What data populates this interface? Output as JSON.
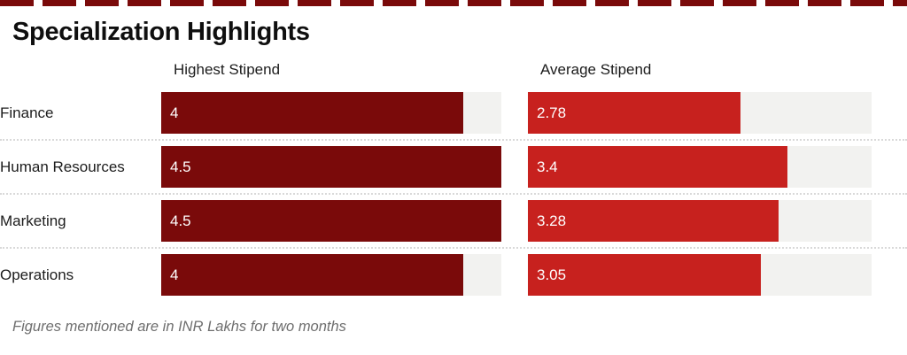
{
  "title": "Specialization Highlights",
  "columns": [
    {
      "label": "Highest Stipend"
    },
    {
      "label": "Average Stipend"
    }
  ],
  "footer_note": "Figures mentioned are in INR Lakhs for two months",
  "colors": {
    "highest_bar": "#7a0a0a",
    "average_bar": "#c7211e",
    "track": "#f2f2f0",
    "top_accent": "#7a0a0a",
    "separator": "#d9d9d9"
  },
  "chart_data": {
    "type": "bar",
    "orientation": "horizontal",
    "title": "Specialization Highlights",
    "categories": [
      "Finance",
      "Human Resources",
      "Marketing",
      "Operations"
    ],
    "series": [
      {
        "name": "Highest Stipend",
        "color": "#7a0a0a",
        "values": [
          4,
          4.5,
          4.5,
          4
        ]
      },
      {
        "name": "Average Stipend",
        "color": "#c7211e",
        "values": [
          2.78,
          3.4,
          3.28,
          3.05
        ]
      }
    ],
    "xlim": [
      0,
      4.5
    ],
    "value_labels": "inside-left",
    "grid": false,
    "legend_position": "column-headers",
    "note": "Figures mentioned are in INR Lakhs for two months"
  }
}
